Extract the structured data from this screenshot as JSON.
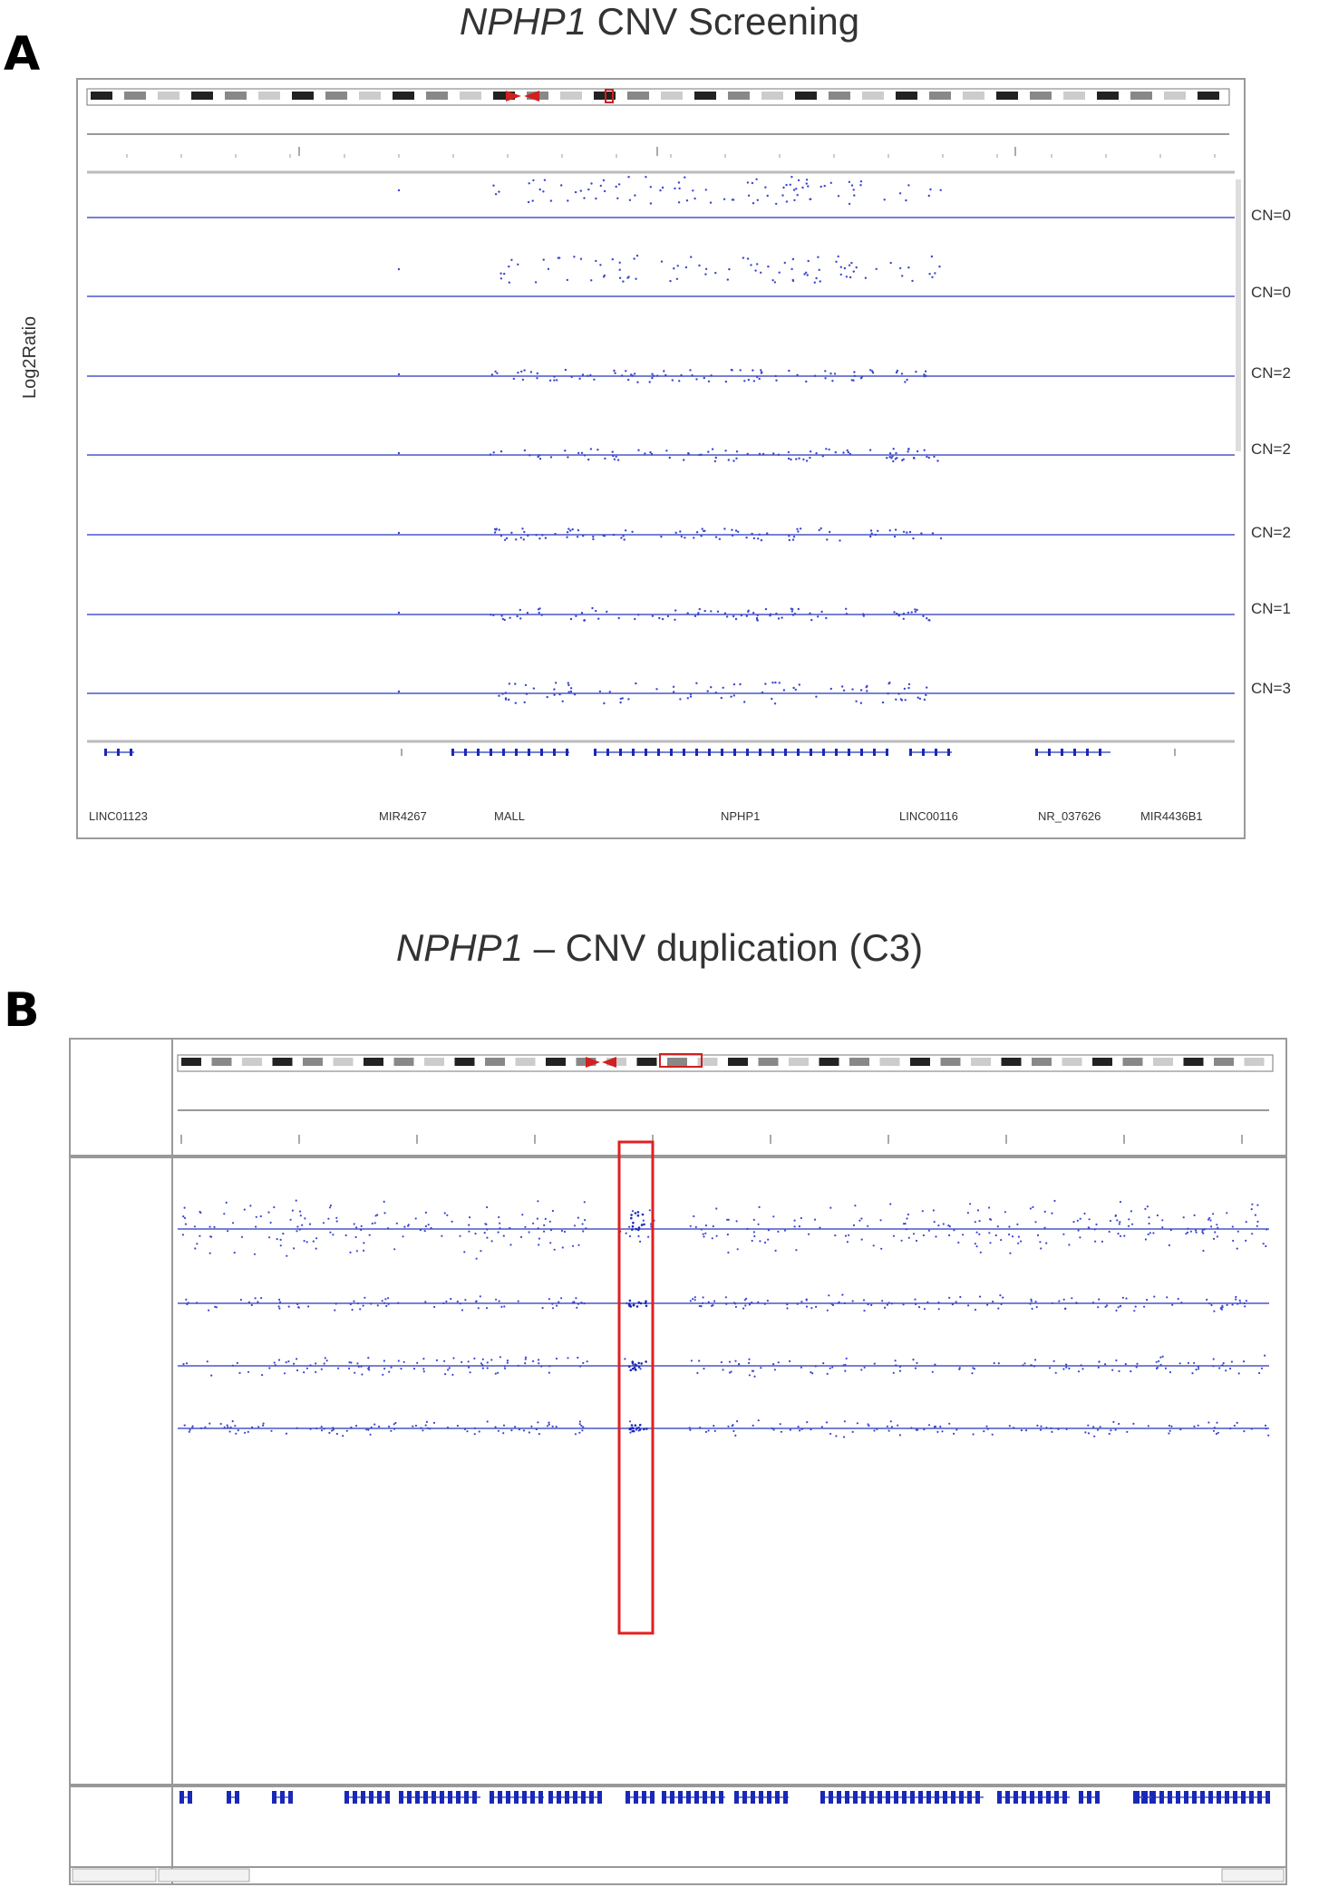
{
  "panelA": {
    "letter": "A",
    "title_italic": "NPHP1",
    "title_rest": " CNV Screening",
    "ylabel": "Log2Ratio",
    "cn_labels": [
      "CN=0",
      "CN=0",
      "CN=2",
      "CN=2",
      "CN=2",
      "CN=1",
      "CN=3"
    ],
    "genes": [
      "LINC01123",
      "MIR4267",
      "MALL",
      "NPHP1",
      "LINC00116",
      "NR_037626",
      "MIR4436B1"
    ]
  },
  "panelB": {
    "letter": "B",
    "title_italic": "NPHP1",
    "title_rest": " – CNV duplication (C3)"
  },
  "colors": {
    "track_line": "#4a56c8",
    "dots": "#3a46d0",
    "highlight": "#e02020",
    "frame": "#9a9a9a"
  }
}
